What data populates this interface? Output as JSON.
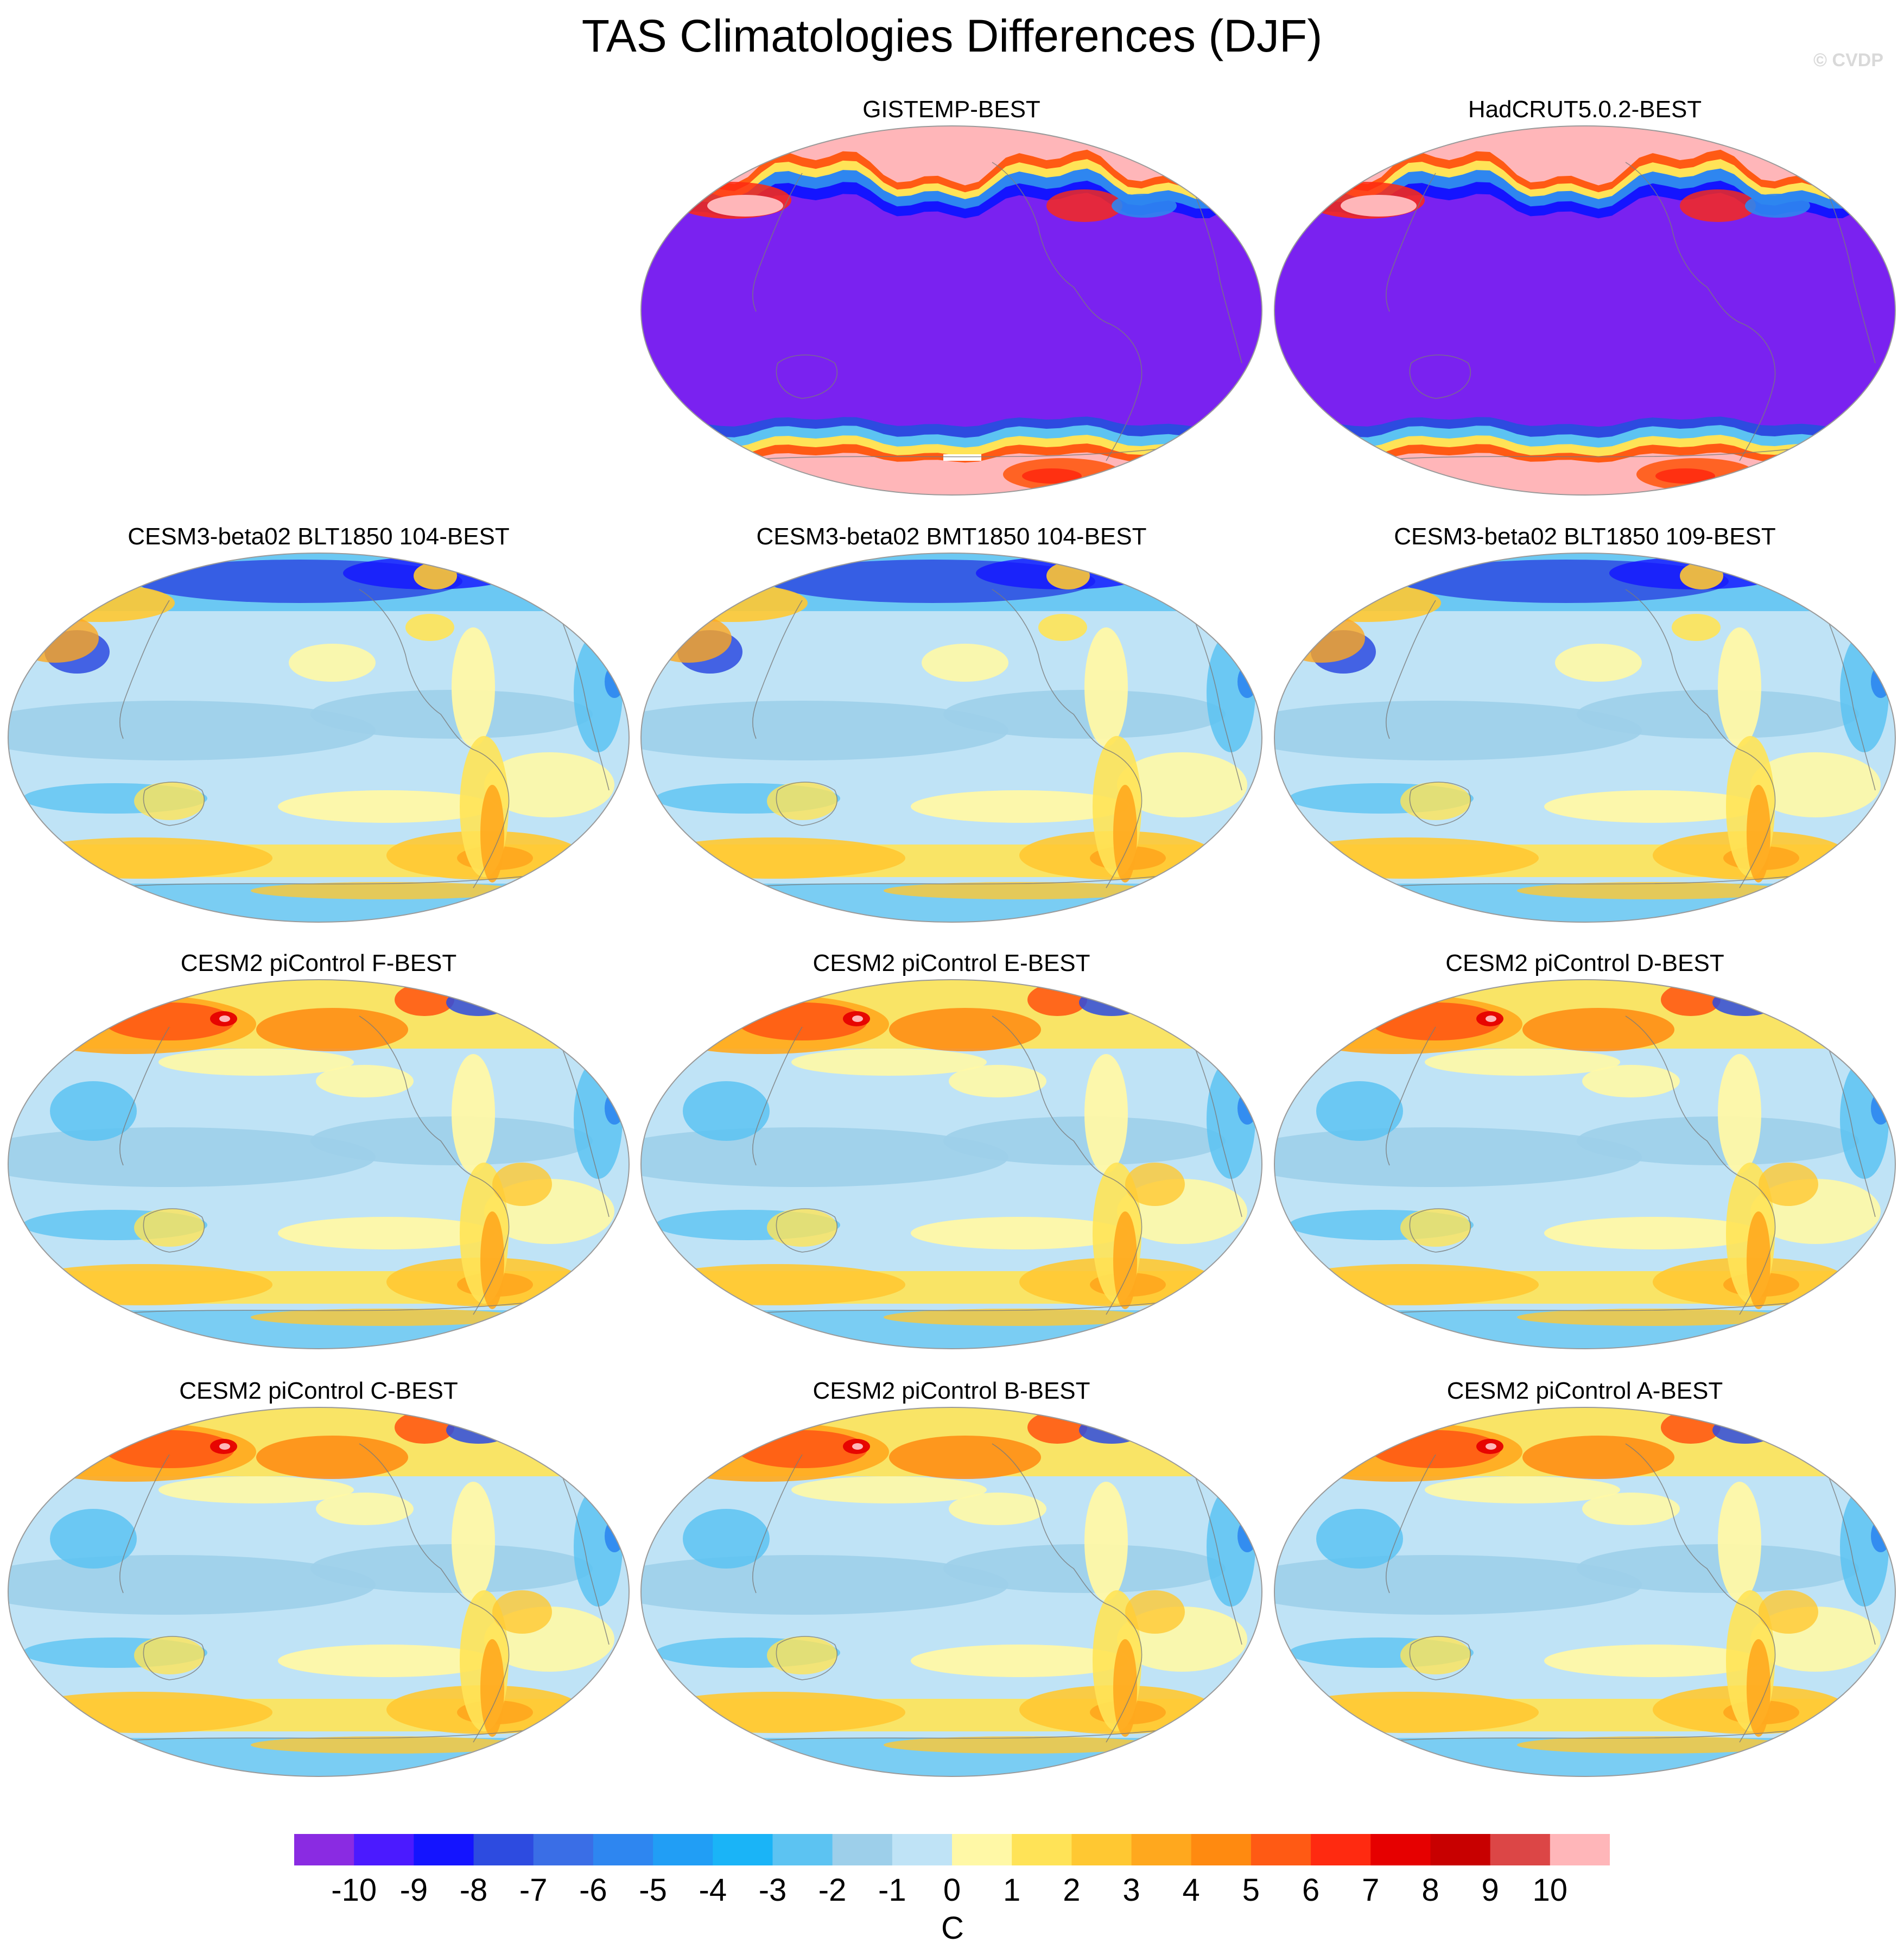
{
  "title": "TAS Climatologies Differences (DJF)",
  "watermark": "© CVDP",
  "colorbar": {
    "unit": "C",
    "ticks": [
      "-10",
      "-9",
      "-8",
      "-7",
      "-6",
      "-5",
      "-4",
      "-3",
      "-2",
      "-1",
      "0",
      "1",
      "2",
      "3",
      "4",
      "5",
      "6",
      "7",
      "8",
      "9",
      "10"
    ],
    "colors": [
      "#8a2be2",
      "#4b1aff",
      "#1414ff",
      "#2d4be0",
      "#3a6ee6",
      "#2e86f0",
      "#219ef5",
      "#1ab4f7",
      "#5cc3f2",
      "#9dcfea",
      "#bfe3f6",
      "#fff8a6",
      "#ffe357",
      "#ffc832",
      "#ffa81e",
      "#ff8a10",
      "#ff5a14",
      "#ff2a10",
      "#e60000",
      "#c80000",
      "#dc4646",
      "#ffb6b9"
    ]
  },
  "panels": [
    {
      "id": "gistemp",
      "title": "GISTEMP-BEST",
      "style": "obs"
    },
    {
      "id": "hadcrut",
      "title": "HadCRUT5.0.2-BEST",
      "style": "obs"
    },
    {
      "id": "blt104",
      "title": "CESM3-beta02 BLT1850 104-BEST",
      "style": "cesm3"
    },
    {
      "id": "bmt104",
      "title": "CESM3-beta02 BMT1850 104-BEST",
      "style": "cesm3"
    },
    {
      "id": "blt109",
      "title": "CESM3-beta02 BLT1850 109-BEST",
      "style": "cesm3"
    },
    {
      "id": "picF",
      "title": "CESM2 piControl F-BEST",
      "style": "cesm2"
    },
    {
      "id": "picE",
      "title": "CESM2 piControl E-BEST",
      "style": "cesm2"
    },
    {
      "id": "picD",
      "title": "CESM2 piControl D-BEST",
      "style": "cesm2"
    },
    {
      "id": "picC",
      "title": "CESM2 piControl C-BEST",
      "style": "cesm2"
    },
    {
      "id": "picB",
      "title": "CESM2 piControl B-BEST",
      "style": "cesm2"
    },
    {
      "id": "picA",
      "title": "CESM2 piControl A-BEST",
      "style": "cesm2"
    }
  ]
}
